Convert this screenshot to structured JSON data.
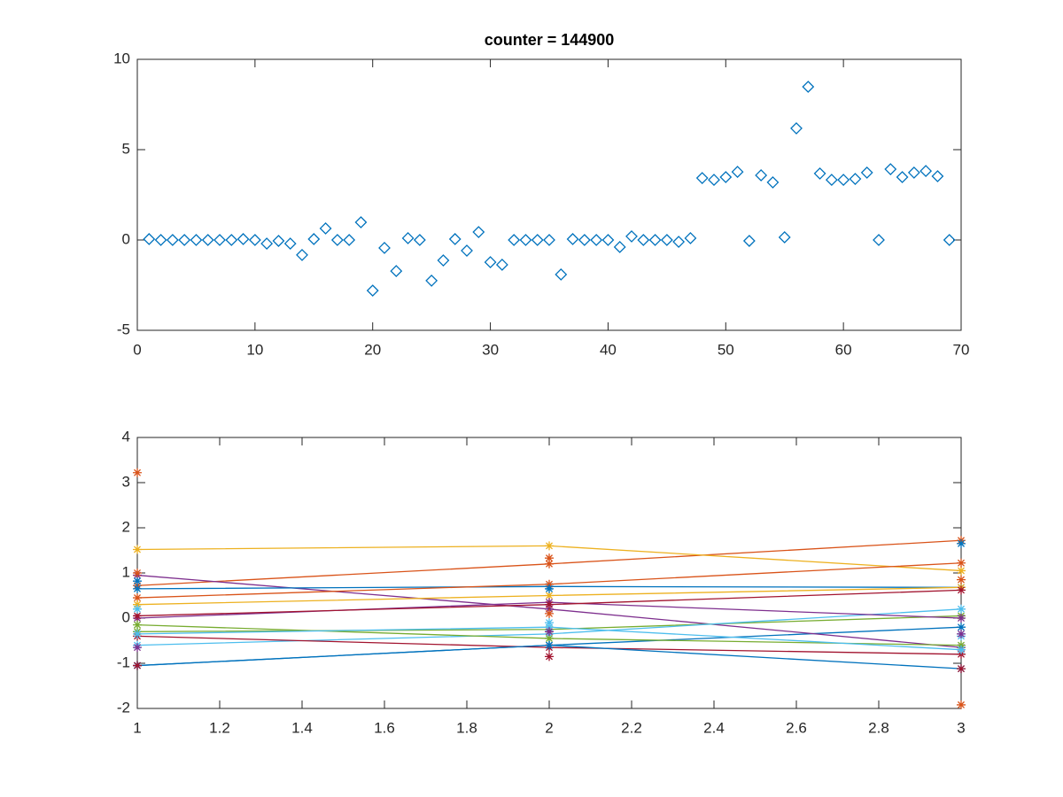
{
  "chart_data": [
    {
      "type": "scatter",
      "title": "counter = 144900",
      "marker": "diamond",
      "color": "#0072bd",
      "x": [
        1,
        2,
        3,
        4,
        5,
        6,
        7,
        8,
        9,
        10,
        11,
        12,
        13,
        14,
        15,
        16,
        17,
        18,
        19,
        20,
        21,
        22,
        23,
        24,
        25,
        26,
        27,
        28,
        29,
        30,
        31,
        32,
        33,
        34,
        35,
        36,
        37,
        38,
        39,
        40,
        41,
        42,
        43,
        44,
        45,
        46,
        47,
        48,
        49,
        50,
        51,
        52,
        53,
        54,
        55,
        56,
        57,
        58,
        59,
        60,
        61,
        62,
        63,
        64,
        65,
        66,
        67,
        68,
        69
      ],
      "values": [
        0.05,
        0,
        0,
        0,
        0,
        0,
        0,
        0,
        0.05,
        0,
        -0.2,
        -0.05,
        -0.2,
        -0.83,
        0.05,
        0.64,
        0,
        0,
        0.98,
        -2.8,
        -0.44,
        -1.72,
        0.1,
        0,
        -2.25,
        -1.13,
        0.05,
        -0.59,
        0.44,
        -1.23,
        -1.37,
        0,
        0,
        0,
        0,
        -1.91,
        0.05,
        0,
        0,
        0,
        -0.39,
        0.2,
        0,
        0,
        0,
        -0.1,
        0.1,
        3.43,
        3.33,
        3.48,
        3.77,
        -0.05,
        3.58,
        3.19,
        0.15,
        6.18,
        8.48,
        3.68,
        3.33,
        3.33,
        3.38,
        3.73,
        0,
        3.92,
        3.48,
        3.73,
        3.82,
        3.53,
        0
      ],
      "xlim": [
        0,
        70
      ],
      "xticks": [
        0,
        10,
        20,
        30,
        40,
        50,
        60,
        70
      ],
      "ylim": [
        -5,
        10
      ],
      "yticks": [
        -5,
        0,
        5,
        10
      ]
    },
    {
      "type": "line",
      "marker": "star",
      "x": [
        1,
        2,
        3
      ],
      "series": [
        {
          "color": "#0072bd",
          "values": [
            -1.05,
            -0.6,
            -0.2
          ],
          "line": true
        },
        {
          "color": "#d95319",
          "values": [
            0.72,
            1.2,
            1.72
          ],
          "line": true
        },
        {
          "color": "#edb120",
          "values": [
            1.52,
            1.6,
            1.05
          ],
          "line": true
        },
        {
          "color": "#7e2f8e",
          "values": [
            0.95,
            0.2,
            -0.65
          ],
          "line": true
        },
        {
          "color": "#77ac30",
          "values": [
            -0.3,
            -0.25,
            0.05
          ],
          "line": true
        },
        {
          "color": "#4dbeee",
          "values": [
            -0.6,
            -0.35,
            0.2
          ],
          "line": true
        },
        {
          "color": "#a2142f",
          "values": [
            -0.4,
            -0.65,
            -0.8
          ],
          "line": true
        },
        {
          "color": "#0072bd",
          "values": [
            0.65,
            0.7,
            0.68
          ],
          "line": true
        },
        {
          "color": "#d95319",
          "values": [
            0.45,
            0.75,
            1.22
          ],
          "line": true
        },
        {
          "color": "#edb120",
          "values": [
            0.3,
            0.5,
            0.68
          ],
          "line": true
        },
        {
          "color": "#7e2f8e",
          "values": [
            0.0,
            0.35,
            0.0
          ],
          "line": true
        },
        {
          "color": "#77ac30",
          "values": [
            -0.15,
            -0.45,
            -0.6
          ],
          "line": true
        },
        {
          "color": "#4dbeee",
          "values": [
            -0.35,
            -0.2,
            -0.7
          ],
          "line": true
        },
        {
          "color": "#a2142f",
          "values": [
            0.05,
            0.3,
            0.62
          ],
          "line": true
        },
        {
          "color": "#0072bd",
          "values": [
            -1.05,
            -0.6,
            -1.12
          ],
          "line": true
        },
        {
          "color": "#d95319",
          "values": [
            3.22,
            1.33,
            -1.92
          ],
          "line": false
        },
        {
          "color": "#a2142f",
          "values": [
            -1.05,
            -0.85,
            -1.12
          ],
          "line": false
        },
        {
          "color": "#0072bd",
          "values": [
            0.82,
            0.65,
            1.65
          ],
          "line": false
        },
        {
          "color": "#d95319",
          "values": [
            1.0,
            0.1,
            0.85
          ],
          "line": false
        },
        {
          "color": "#4dbeee",
          "values": [
            0.2,
            -0.1,
            -0.4
          ],
          "line": false
        },
        {
          "color": "#7e2f8e",
          "values": [
            -0.65,
            -0.3,
            -0.35
          ],
          "line": false
        }
      ],
      "xlim": [
        1,
        3
      ],
      "xticks": [
        1,
        1.2,
        1.4,
        1.6,
        1.8,
        2,
        2.2,
        2.4,
        2.6,
        2.8,
        3
      ],
      "ylim": [
        -2,
        4
      ],
      "yticks": [
        -2,
        -1,
        0,
        1,
        2,
        3,
        4
      ]
    }
  ]
}
